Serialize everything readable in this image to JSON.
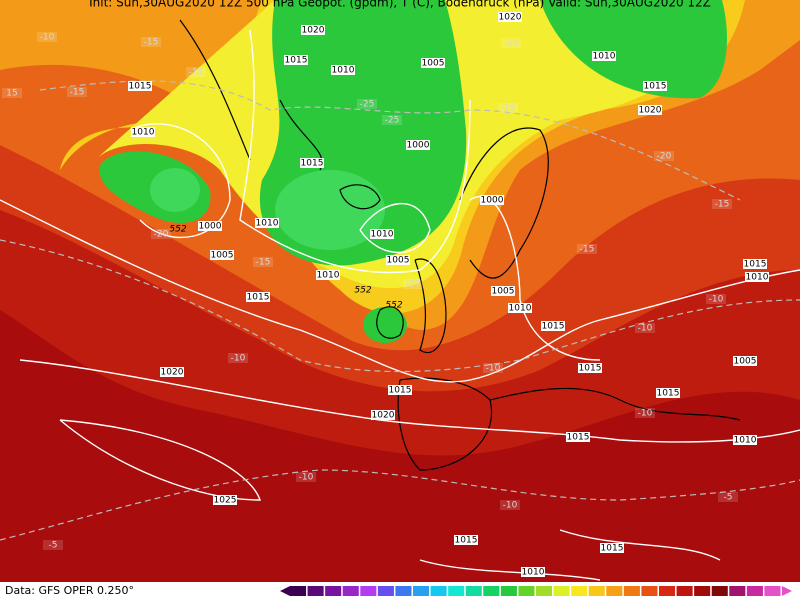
{
  "header": {
    "text": "Init: Sun,30AUG2020 12Z   500 hPa Geopot. (gpdm), T (C), Bodendruck (hPa)   Valid: Sun,30AUG2020 12Z"
  },
  "map": {
    "pressure_labels": [
      "1020",
      "1015",
      "1010",
      "1005",
      "1020",
      "1010",
      "1015",
      "1020",
      "1015",
      "1010",
      "1015",
      "1000",
      "1000",
      "1000",
      "1010",
      "1010",
      "1005",
      "1005",
      "1010",
      "1005",
      "1015",
      "1010",
      "1015",
      "1015",
      "1010",
      "1015",
      "1005",
      "1020",
      "1015",
      "1015",
      "1020",
      "1015",
      "1010",
      "1025",
      "1015",
      "1015",
      "1010"
    ],
    "temperature_labels": [
      "-10",
      "-15",
      "-15",
      "-15",
      "15",
      "-25",
      "-25",
      "-20",
      "-15",
      "-20",
      "-15",
      "-20",
      "-15",
      "-15",
      "-10",
      "-10",
      "-10",
      "-10",
      "-10",
      "-10",
      "-10",
      "-5",
      "-5",
      "-20"
    ],
    "height_labels": [
      "552",
      "552",
      "552"
    ]
  },
  "footer": {
    "source": "Data: GFS OPER 0.250°"
  }
}
